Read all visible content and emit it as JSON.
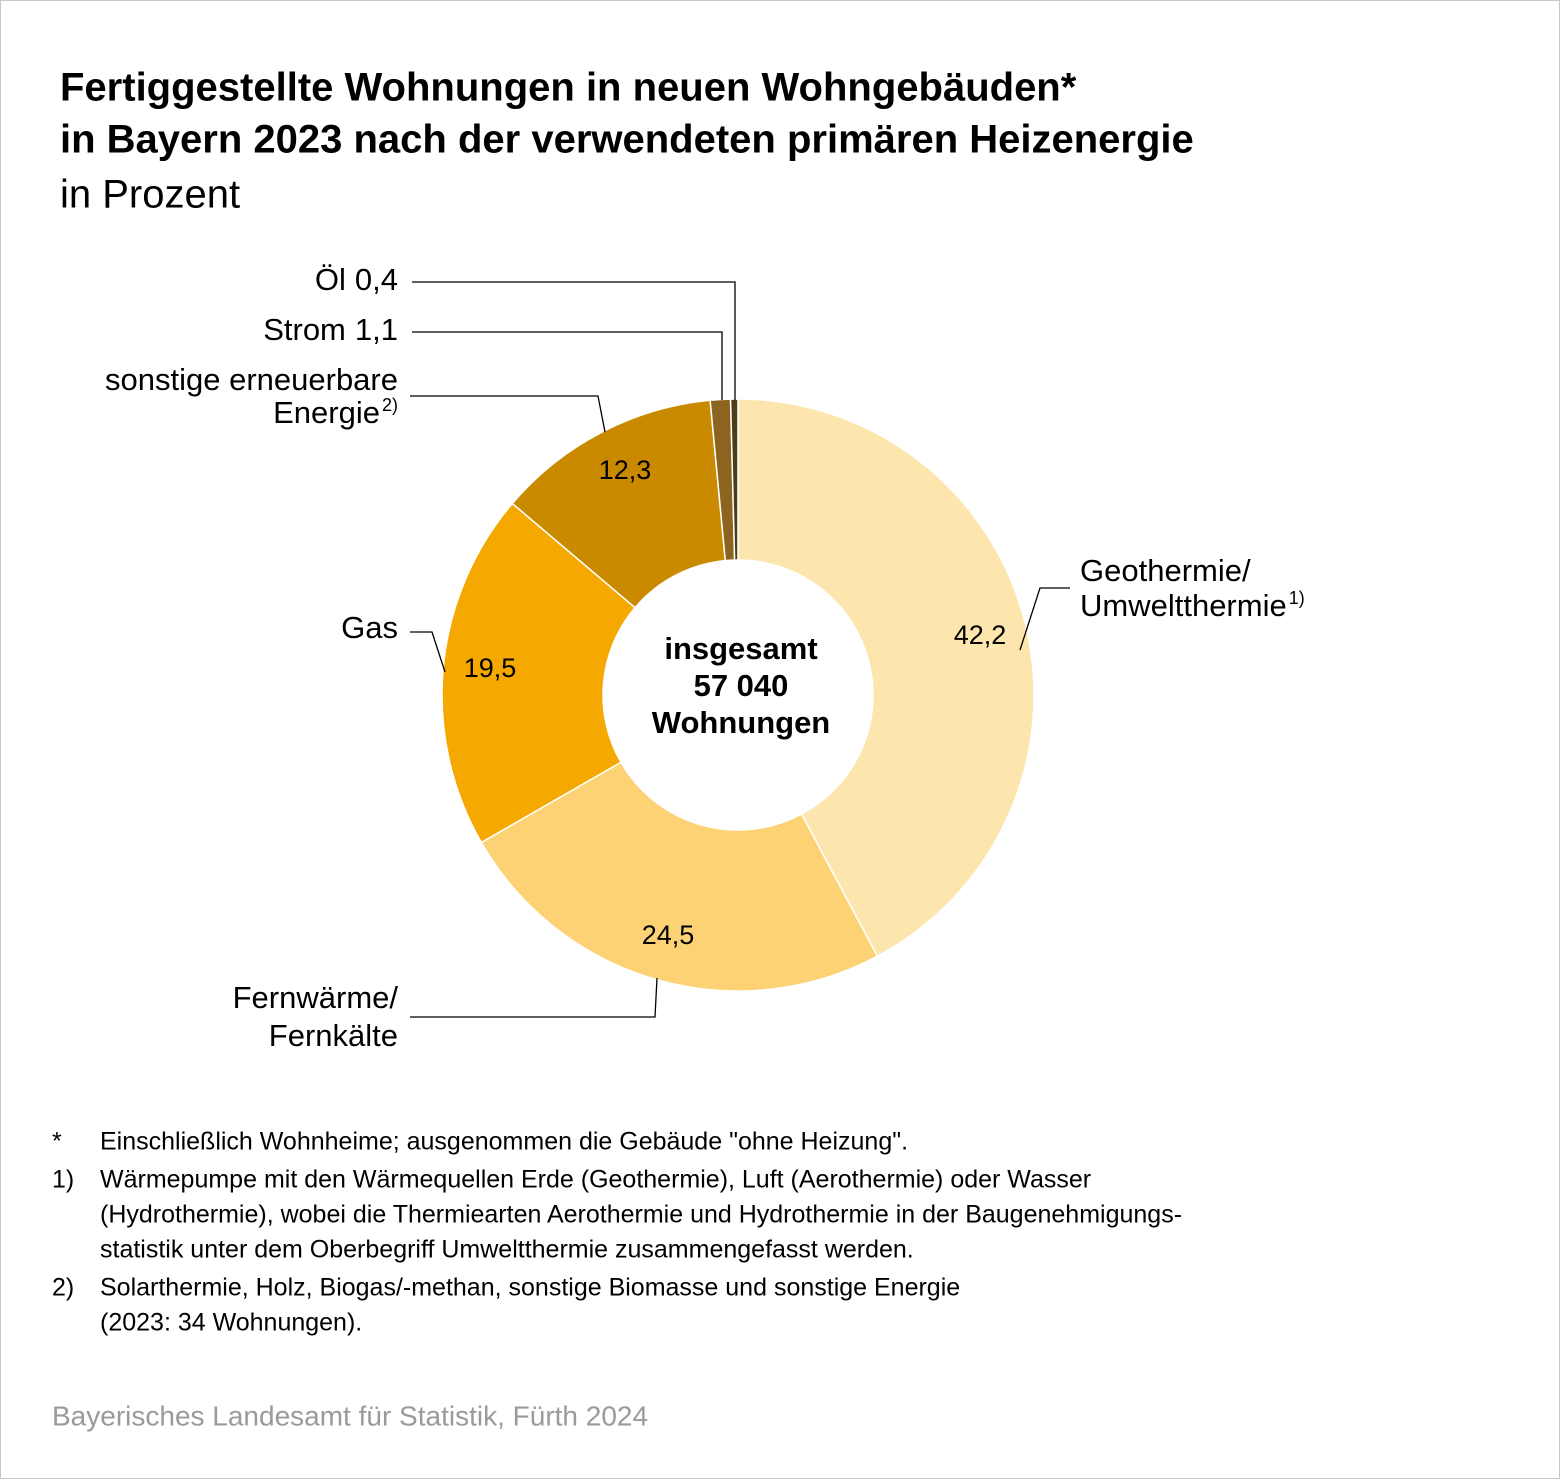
{
  "chart_data": {
    "type": "donut",
    "title": [
      "Fertiggestellte Wohnungen in neuen Wohngebäuden*",
      "in Bayern 2023 nach der verwendeten primären Heizenergie"
    ],
    "subtitle": "in Prozent",
    "categories": [
      [
        "Geothermie/",
        "Umweltthermie"
      ],
      [
        "Fernwärme/",
        "Fernkälte"
      ],
      [
        "Gas"
      ],
      [
        "sonstige erneuerbare",
        "Energie"
      ],
      [
        "Strom"
      ],
      [
        "Öl"
      ]
    ],
    "category_notes": [
      "1)",
      null,
      null,
      "2)",
      null,
      null
    ],
    "values": [
      42.2,
      24.5,
      19.5,
      12.3,
      1.1,
      0.4
    ],
    "value_labels": [
      "42,2",
      "24,5",
      "19,5",
      "12,3",
      "1,1",
      "0,4"
    ],
    "colors": [
      "#fde6ad",
      "#fcd274",
      "#f5a800",
      "#c98a00",
      "#8c6420",
      "#4d3b1c"
    ],
    "center_label": [
      "insgesamt",
      "57 040",
      "Wohnungen"
    ],
    "footnotes": [
      {
        "marker": "*",
        "lines": [
          "Einschließlich Wohnheime; ausgenommen die Gebäude \"ohne Heizung\"."
        ]
      },
      {
        "marker": "1)",
        "lines": [
          "Wärmepumpe mit den Wärmequellen Erde (Geothermie), Luft (Aerothermie) oder Wasser",
          "(Hydrothermie), wobei die Thermiearten Aerothermie und Hydrothermie in der Baugenehmigungs-",
          "statistik unter dem Oberbegriff Umweltthermie zusammengefasst werden."
        ]
      },
      {
        "marker": "2)",
        "lines": [
          "Solarthermie, Holz, Biogas/-methan, sonstige Biomasse und sonstige Energie",
          "(2023: 34 Wohnungen)."
        ]
      }
    ],
    "source": "Bayerisches Landesamt für Statistik, Fürth 2024"
  }
}
